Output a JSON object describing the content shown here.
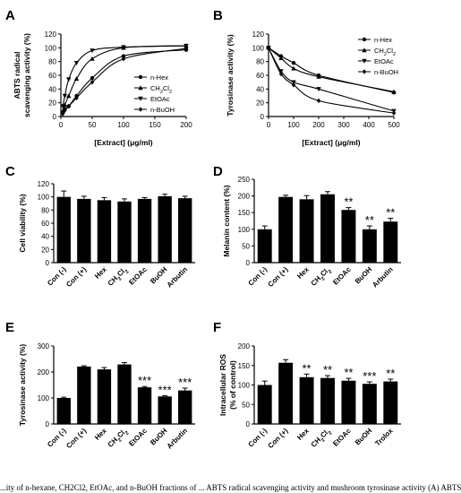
{
  "caption": "...ity of n-hexane, CH2Cl2, EtOAc, and n-BuOH fractions of ... ABTS radical scavenging activity and mushroom tyrosinase activity (A) ABTS",
  "chart_data": [
    {
      "panel": "A",
      "type": "scatter",
      "xlabel": "[Extract] (μg/ml)",
      "ylabel": "ABTS radical scavenging activity (%)",
      "xlim": [
        0,
        200
      ],
      "ylim": [
        0,
        120
      ],
      "xticks": [
        0,
        50,
        100,
        150,
        200
      ],
      "yticks": [
        0,
        20,
        40,
        60,
        80,
        100,
        120
      ],
      "legend_position": "right",
      "series": [
        {
          "name": "n-Hex",
          "marker": "circle",
          "x": [
            3.1,
            6.3,
            12.5,
            25,
            50,
            100,
            200
          ],
          "y": [
            6,
            11,
            15,
            30,
            56,
            88,
            97
          ]
        },
        {
          "name": "CH₂Cl₂",
          "marker": "triangle-up",
          "x": [
            3.1,
            6.3,
            12.5,
            25,
            50,
            100,
            200
          ],
          "y": [
            8,
            17,
            30,
            55,
            84,
            100,
            103
          ]
        },
        {
          "name": "EtOAc",
          "marker": "triangle-down",
          "x": [
            3.1,
            6.3,
            12.5,
            25,
            50,
            100,
            200
          ],
          "y": [
            15,
            30,
            54,
            78,
            96,
            101,
            103
          ]
        },
        {
          "name": "n-BuOH",
          "marker": "diamond",
          "x": [
            3.1,
            6.3,
            12.5,
            25,
            50,
            100,
            200
          ],
          "y": [
            4,
            9,
            15,
            27,
            50,
            84,
            99
          ]
        }
      ]
    },
    {
      "panel": "B",
      "type": "scatter",
      "xlabel": "[Extract] (μg/ml)",
      "ylabel": "Tyrosinase activity (%)",
      "xlim": [
        0,
        500
      ],
      "ylim": [
        0,
        120
      ],
      "xticks": [
        0,
        100,
        200,
        300,
        400,
        500
      ],
      "yticks": [
        0,
        20,
        40,
        60,
        80,
        100,
        120
      ],
      "legend_position": "top-right",
      "series": [
        {
          "name": "n-Hex",
          "marker": "circle",
          "x": [
            0,
            50,
            100,
            200,
            500
          ],
          "y": [
            100,
            88,
            78,
            60,
            35
          ]
        },
        {
          "name": "CH₂Cl₂",
          "marker": "triangle-up",
          "x": [
            0,
            50,
            100,
            200,
            500
          ],
          "y": [
            100,
            85,
            70,
            58,
            36
          ]
        },
        {
          "name": "EtOAc",
          "marker": "triangle-down",
          "x": [
            0,
            50,
            100,
            200,
            500
          ],
          "y": [
            100,
            66,
            50,
            40,
            8
          ]
        },
        {
          "name": "n-BuOH",
          "marker": "diamond",
          "x": [
            0,
            50,
            100,
            200,
            500
          ],
          "y": [
            100,
            62,
            46,
            23,
            5
          ]
        }
      ]
    },
    {
      "panel": "C",
      "type": "bar",
      "ylabel": "Cell viability (%)",
      "ylim": [
        0,
        120
      ],
      "yticks": [
        0,
        20,
        40,
        60,
        80,
        100,
        120
      ],
      "categories": [
        "Con (-)",
        "Con (+)",
        "Hex",
        "CH₂Cl₂",
        "EtOAc",
        "BuOH",
        "Arbutin"
      ],
      "values": [
        100,
        97,
        95,
        93,
        97,
        101,
        98
      ],
      "errors": [
        9,
        4,
        4,
        4,
        2,
        3,
        3
      ],
      "annotations": [
        "",
        "",
        "",
        "",
        "",
        "",
        ""
      ]
    },
    {
      "panel": "D",
      "type": "bar",
      "ylabel": "Melanin content (%)",
      "ylim": [
        0,
        250
      ],
      "yticks": [
        0,
        50,
        100,
        150,
        200,
        250
      ],
      "categories": [
        "Con (-)",
        "Con (+)",
        "Hex",
        "CH₂Cl₂",
        "EtOAc",
        "BuOH",
        "Arbutin"
      ],
      "values": [
        100,
        197,
        190,
        205,
        158,
        100,
        123
      ],
      "errors": [
        10,
        5,
        11,
        8,
        7,
        10,
        10
      ],
      "annotations": [
        "",
        "",
        "",
        "",
        "**",
        "**",
        "**"
      ]
    },
    {
      "panel": "E",
      "type": "bar",
      "ylabel": "Tyrosinase activity (%)",
      "ylim": [
        0,
        300
      ],
      "yticks": [
        0,
        100,
        200,
        300
      ],
      "categories": [
        "Con (-)",
        "Con (+)",
        "Hex",
        "CH₂Cl₂",
        "EtOAc",
        "BuOH",
        "Arbutin"
      ],
      "values": [
        100,
        221,
        210,
        229,
        141,
        106,
        129
      ],
      "errors": [
        3,
        3,
        7,
        7,
        3,
        3,
        9
      ],
      "annotations": [
        "",
        "",
        "",
        "",
        "***",
        "***",
        "***"
      ]
    },
    {
      "panel": "F",
      "type": "bar",
      "ylabel": "Intracellular ROS (% of control)",
      "ylim": [
        0,
        200
      ],
      "yticks": [
        0,
        50,
        100,
        150,
        200
      ],
      "categories": [
        "Con (-)",
        "Con (+)",
        "Hex",
        "CH₂Cl₂",
        "EtOAc",
        "BuOH",
        "Trolox"
      ],
      "values": [
        100,
        157,
        120,
        118,
        111,
        103,
        109
      ],
      "errors": [
        10,
        8,
        8,
        6,
        6,
        5,
        6
      ],
      "annotations": [
        "",
        "",
        "**",
        "**",
        "**",
        "***",
        "**"
      ]
    }
  ]
}
